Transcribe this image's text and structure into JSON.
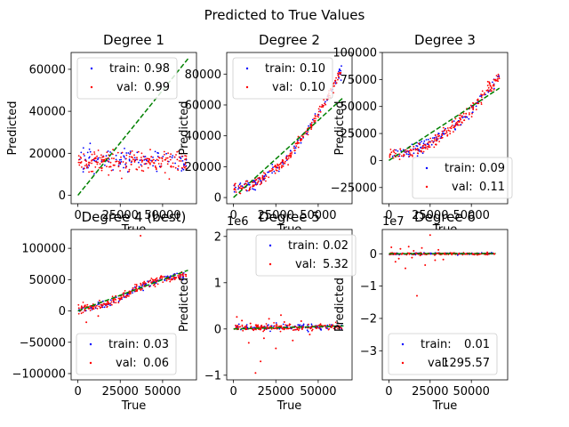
{
  "figure": {
    "title": "Predicted to True Values"
  },
  "colors": {
    "train": "#0000ff",
    "val": "#ff0000",
    "ideal_line": "#008000",
    "axes": "#000000",
    "background": "#ffffff"
  },
  "chart_data": [
    {
      "type": "scatter",
      "title": "Degree 1",
      "xlabel": "True",
      "ylabel": "Predicted",
      "xlim": [
        -4000,
        70000
      ],
      "ylim": [
        -4000,
        68000
      ],
      "xticks": [
        0,
        25000,
        50000
      ],
      "xtick_labels": [
        "0",
        "25000",
        "50000"
      ],
      "yticks": [
        0,
        20000,
        40000,
        60000
      ],
      "ytick_labels": [
        "0",
        "20000",
        "40000",
        "60000"
      ],
      "offset_label": "",
      "legend_position": "top",
      "legend": [
        {
          "name": "train:",
          "value": "0.98"
        },
        {
          "name": "val:",
          "value": "0.99"
        }
      ],
      "pattern": "flat",
      "params": {
        "level": 16500,
        "spread": 2500,
        "xmax": 65000
      },
      "reference_line": {
        "from": [
          0,
          0
        ],
        "to": [
          65000,
          65000
        ]
      }
    },
    {
      "type": "scatter",
      "title": "Degree 2",
      "xlabel": "True",
      "ylabel": "Predicted",
      "xlim": [
        -4000,
        70000
      ],
      "ylim": [
        -4000,
        94000
      ],
      "xticks": [
        0,
        25000,
        50000
      ],
      "xtick_labels": [
        "0",
        "25000",
        "50000"
      ],
      "yticks": [
        0,
        20000,
        40000,
        60000,
        80000
      ],
      "ytick_labels": [
        "0",
        "20000",
        "40000",
        "60000",
        "80000"
      ],
      "offset_label": "",
      "legend_position": "top",
      "legend": [
        {
          "name": "train:",
          "value": "0.10"
        },
        {
          "name": "val:",
          "value": "0.10"
        }
      ],
      "pattern": "curve",
      "params": {
        "y0": 6000,
        "y1": 86000,
        "power": 1.9,
        "spread": 1800,
        "xmax": 65000
      },
      "reference_line": {
        "from": [
          0,
          0
        ],
        "to": [
          65000,
          65000
        ]
      }
    },
    {
      "type": "scatter",
      "title": "Degree 3",
      "xlabel": "True",
      "ylabel": "Predicted",
      "xlim": [
        -4000,
        72000
      ],
      "ylim": [
        -40000,
        100000
      ],
      "xticks": [
        0,
        25000,
        50000
      ],
      "xtick_labels": [
        "0",
        "25000",
        "50000"
      ],
      "yticks": [
        -25000,
        0,
        25000,
        50000,
        75000,
        100000
      ],
      "ytick_labels": [
        "−25000",
        "0",
        "25000",
        "50000",
        "75000",
        "100000"
      ],
      "offset_label": "",
      "legend_position": "bottom-right",
      "legend": [
        {
          "name": "train:",
          "value": "0.09"
        },
        {
          "name": "val:",
          "value": "0.11"
        }
      ],
      "pattern": "curve",
      "params": {
        "y0": 6000,
        "y1": 82000,
        "power": 2.0,
        "spread": 3000,
        "xmax": 68000
      },
      "reference_line": {
        "from": [
          0,
          0
        ],
        "to": [
          67000,
          67000
        ]
      }
    },
    {
      "type": "scatter",
      "title": "Degree 4 (best)",
      "xlabel": "True",
      "ylabel": "",
      "xlim": [
        -4000,
        70000
      ],
      "ylim": [
        -110000,
        130000
      ],
      "xticks": [
        0,
        25000,
        50000
      ],
      "xtick_labels": [
        "0",
        "25000",
        "50000"
      ],
      "yticks": [
        -100000,
        -50000,
        0,
        50000,
        100000
      ],
      "ytick_labels": [
        "−100000",
        "−50000",
        "0",
        "50000",
        "100000"
      ],
      "offset_label": "",
      "legend_position": "bottom-left",
      "legend": [
        {
          "name": "train:",
          "value": "0.03"
        },
        {
          "name": "val:",
          "value": "0.06"
        }
      ],
      "pattern": "sigmoid",
      "params": {
        "y0": 2000,
        "y1": 56000,
        "mid": 30000,
        "width": 9000,
        "spread": 3500,
        "xmax": 65000
      },
      "outliers": [
        [
          37000,
          120000
        ],
        [
          5000,
          -18000
        ],
        [
          12000,
          -8000
        ]
      ],
      "reference_line": {
        "from": [
          0,
          0
        ],
        "to": [
          65000,
          65000
        ]
      }
    },
    {
      "type": "scatter",
      "title": "Degree 5",
      "xlabel": "True",
      "ylabel": "Predicted",
      "xlim": [
        -4000,
        70000
      ],
      "ylim": [
        -1100000,
        2150000
      ],
      "xticks": [
        0,
        25000,
        50000
      ],
      "xtick_labels": [
        "0",
        "25000",
        "50000"
      ],
      "yticks": [
        -1000000,
        0,
        1000000,
        2000000
      ],
      "ytick_labels": [
        "−1",
        "0",
        "1",
        "2"
      ],
      "offset_label": "1e6",
      "legend_position": "top-right",
      "legend": [
        {
          "name": "train:",
          "value": "0.02"
        },
        {
          "name": "val:",
          "value": "5.32"
        }
      ],
      "pattern": "flat",
      "params": {
        "level": 20000,
        "spread": 30000,
        "xmax": 65000,
        "slope": 1.0
      },
      "outliers": [
        [
          2000,
          260000
        ],
        [
          5000,
          180000
        ],
        [
          9000,
          -300000
        ],
        [
          13000,
          -950000
        ],
        [
          16000,
          -700000
        ],
        [
          21000,
          220000
        ],
        [
          25000,
          -420000
        ],
        [
          30000,
          150000
        ],
        [
          35000,
          -250000
        ],
        [
          40000,
          170000
        ],
        [
          45000,
          -120000
        ],
        [
          28000,
          300000
        ],
        [
          10000,
          120000
        ],
        [
          18000,
          -200000
        ]
      ],
      "reference_line": {
        "from": [
          0,
          0
        ],
        "to": [
          65000,
          65000
        ]
      }
    },
    {
      "type": "scatter",
      "title": "Degree 6",
      "xlabel": "True",
      "ylabel": "Predicted",
      "xlim": [
        -4000,
        72000
      ],
      "ylim": [
        -39000000,
        7500000
      ],
      "xticks": [
        0,
        25000,
        50000
      ],
      "xtick_labels": [
        "0",
        "25000",
        "50000"
      ],
      "yticks": [
        -30000000,
        -20000000,
        -10000000,
        0
      ],
      "ytick_labels": [
        "−3",
        "−2",
        "−1",
        "0"
      ],
      "offset_label": "1e7",
      "legend_position": "bottom-right",
      "legend": [
        {
          "name": "train:",
          "value": "0.01"
        },
        {
          "name": "val:",
          "value": "1295.57"
        }
      ],
      "pattern": "flat",
      "params": {
        "level": 0,
        "spread": 150000,
        "xmax": 65000
      },
      "outliers": [
        [
          1500,
          2000000
        ],
        [
          4000,
          -2500000
        ],
        [
          7000,
          1500000
        ],
        [
          10000,
          -4500000
        ],
        [
          12000,
          2200000
        ],
        [
          14000,
          -1200000
        ],
        [
          17000,
          -13000000
        ],
        [
          20000,
          1800000
        ],
        [
          22000,
          -3500000
        ],
        [
          25000,
          5800000
        ],
        [
          28000,
          -2000000
        ],
        [
          30000,
          1200000
        ],
        [
          33000,
          -1800000
        ],
        [
          6000,
          -1500000
        ],
        [
          15000,
          900000
        ]
      ],
      "reference_line": {
        "from": [
          0,
          0
        ],
        "to": [
          65000,
          65000
        ]
      }
    }
  ]
}
